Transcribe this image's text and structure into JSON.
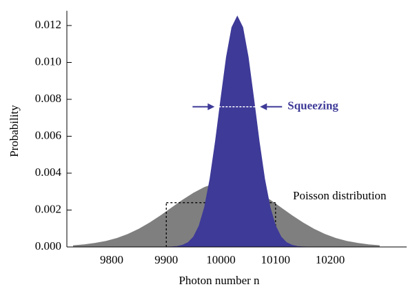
{
  "chart_data": {
    "type": "area",
    "xlabel": "Photon number n",
    "ylabel": "Probability",
    "xlim": [
      9718,
      10340
    ],
    "ylim": [
      0,
      0.0128
    ],
    "xticks": [
      9800,
      9900,
      10000,
      10100,
      10200
    ],
    "yticks": [
      {
        "value": 0,
        "label": "0.000"
      },
      {
        "value": 0.002,
        "label": "0.002"
      },
      {
        "value": 0.004,
        "label": "0.004"
      },
      {
        "value": 0.006,
        "label": "0.006"
      },
      {
        "value": 0.008,
        "label": "0.008"
      },
      {
        "value": 0.01,
        "label": "0.010"
      },
      {
        "value": 0.012,
        "label": "0.012"
      }
    ],
    "series": [
      {
        "name": "Poisson distribution",
        "color": "#7f7f7f",
        "x": [
          9730,
          9750,
          9770,
          9790,
          9810,
          9830,
          9850,
          9870,
          9890,
          9910,
          9930,
          9950,
          9970,
          9990,
          10010,
          10030,
          10050,
          10070,
          10090,
          10110,
          10130,
          10150,
          10170,
          10190,
          10210,
          10230,
          10250,
          10270,
          10290
        ],
        "values": [
          7e-05,
          0.00012,
          0.0002,
          0.00031,
          0.00047,
          0.00069,
          0.00097,
          0.00131,
          0.0017,
          0.00212,
          0.00254,
          0.00292,
          0.00323,
          0.00343,
          0.0035,
          0.00343,
          0.00323,
          0.00292,
          0.00254,
          0.00212,
          0.0017,
          0.00131,
          0.00097,
          0.00069,
          0.00047,
          0.00031,
          0.0002,
          0.00012,
          7e-05
        ]
      },
      {
        "name": "Squeezing",
        "color": "#3e3a98",
        "x": [
          9900,
          9910,
          9920,
          9930,
          9940,
          9950,
          9960,
          9970,
          9980,
          9990,
          10000,
          10010,
          10020,
          10030,
          10040,
          10050,
          10060,
          10070,
          10080,
          10090,
          10100,
          10110,
          10120,
          10130,
          10140,
          10150,
          10160
        ],
        "values": [
          0,
          1e-05,
          3e-05,
          0.0001,
          0.00024,
          0.00055,
          0.00114,
          0.00215,
          0.00369,
          0.00573,
          0.00805,
          0.01028,
          0.0119,
          0.0125,
          0.0119,
          0.01028,
          0.00805,
          0.00573,
          0.00369,
          0.00215,
          0.00114,
          0.00055,
          0.00024,
          0.0001,
          3e-05,
          1e-05,
          0
        ]
      }
    ],
    "dashed_box": {
      "x": [
        9900,
        10100
      ],
      "y": 0.0024
    },
    "squeeze_line": {
      "x": [
        9996,
        10064
      ],
      "y": 0.0076
    }
  }
}
